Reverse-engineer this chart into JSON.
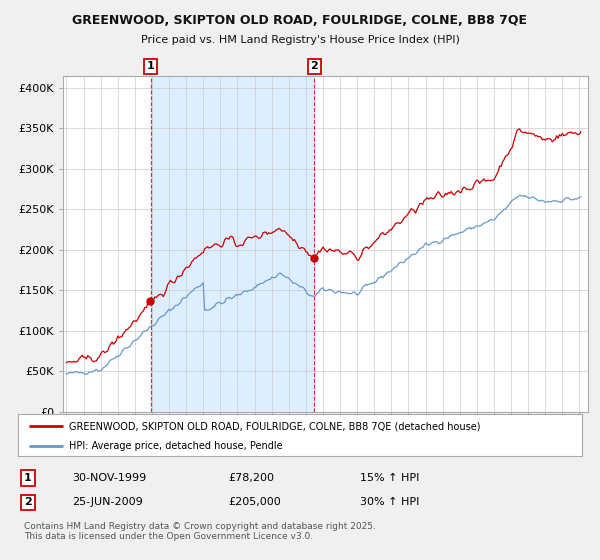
{
  "title": "GREENWOOD, SKIPTON OLD ROAD, FOULRIDGE, COLNE, BB8 7QE",
  "subtitle": "Price paid vs. HM Land Registry's House Price Index (HPI)",
  "ylabel_ticks": [
    "£0",
    "£50K",
    "£100K",
    "£150K",
    "£200K",
    "£250K",
    "£300K",
    "£350K",
    "£400K"
  ],
  "ytick_values": [
    0,
    50000,
    100000,
    150000,
    200000,
    250000,
    300000,
    350000,
    400000
  ],
  "ylim": [
    0,
    415000
  ],
  "xlim_start": 1994.8,
  "xlim_end": 2025.5,
  "background_color": "#f0f0f0",
  "plot_bg_color": "#ffffff",
  "grid_color": "#cccccc",
  "red_color": "#cc0000",
  "blue_color": "#6699cc",
  "shade_color": "#ddeeff",
  "legend_label_red": "GREENWOOD, SKIPTON OLD ROAD, FOULRIDGE, COLNE, BB8 7QE (detached house)",
  "legend_label_blue": "HPI: Average price, detached house, Pendle",
  "transaction1_label": "1",
  "transaction1_date": "30-NOV-1999",
  "transaction1_price": "£78,200",
  "transaction1_hpi": "15% ↑ HPI",
  "transaction1_year": 1999.92,
  "transaction1_value": 78200,
  "transaction2_label": "2",
  "transaction2_date": "25-JUN-2009",
  "transaction2_price": "£205,000",
  "transaction2_hpi": "30% ↑ HPI",
  "transaction2_year": 2009.5,
  "transaction2_value": 205000,
  "footer": "Contains HM Land Registry data © Crown copyright and database right 2025.\nThis data is licensed under the Open Government Licence v3.0."
}
